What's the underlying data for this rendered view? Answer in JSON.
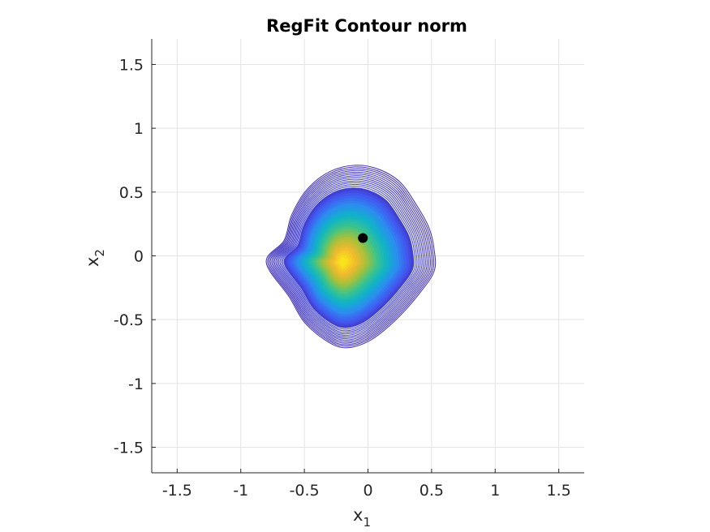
{
  "chart_data": {
    "type": "contour",
    "title": "RegFit Contour norm",
    "xlabel": {
      "main": "x",
      "sub": "1"
    },
    "ylabel": {
      "main": "x",
      "sub": "2"
    },
    "xlim": [
      -1.7,
      1.7
    ],
    "ylim": [
      -1.7,
      1.7
    ],
    "xticks": [
      -1.5,
      -1,
      -0.5,
      0,
      0.5,
      1,
      1.5
    ],
    "yticks": [
      -1.5,
      -1,
      -0.5,
      0,
      0.5,
      1,
      1.5
    ],
    "xtick_labels": [
      "-1.5",
      "-1",
      "-0.5",
      "0",
      "0.5",
      "1",
      "1.5"
    ],
    "ytick_labels": [
      "-1.5",
      "-1",
      "-0.5",
      "0",
      "0.5",
      "1",
      "1.5"
    ],
    "grid": true,
    "colormap": [
      "#3e26a8",
      "#4355f0",
      "#2c8cf0",
      "#0fb3c8",
      "#3cc48a",
      "#a6c13a",
      "#f2b92e",
      "#f9e41c"
    ],
    "contour": {
      "center": [
        -0.2,
        -0.05
      ],
      "outer_boundary": [
        [
          0.52,
          0.05
        ],
        [
          0.48,
          0.22
        ],
        [
          0.38,
          0.4
        ],
        [
          0.25,
          0.58
        ],
        [
          0.08,
          0.68
        ],
        [
          -0.1,
          0.71
        ],
        [
          -0.3,
          0.66
        ],
        [
          -0.48,
          0.52
        ],
        [
          -0.6,
          0.32
        ],
        [
          -0.66,
          0.12
        ],
        [
          -0.8,
          -0.05
        ],
        [
          -0.62,
          -0.32
        ],
        [
          -0.5,
          -0.52
        ],
        [
          -0.32,
          -0.67
        ],
        [
          -0.17,
          -0.72
        ],
        [
          0.02,
          -0.66
        ],
        [
          0.22,
          -0.5
        ],
        [
          0.4,
          -0.3
        ],
        [
          0.52,
          -0.12
        ]
      ],
      "outer_level_count": 14,
      "filled_level_count": 28
    },
    "marker": {
      "x": -0.04,
      "y": 0.14,
      "color": "#000000"
    }
  }
}
